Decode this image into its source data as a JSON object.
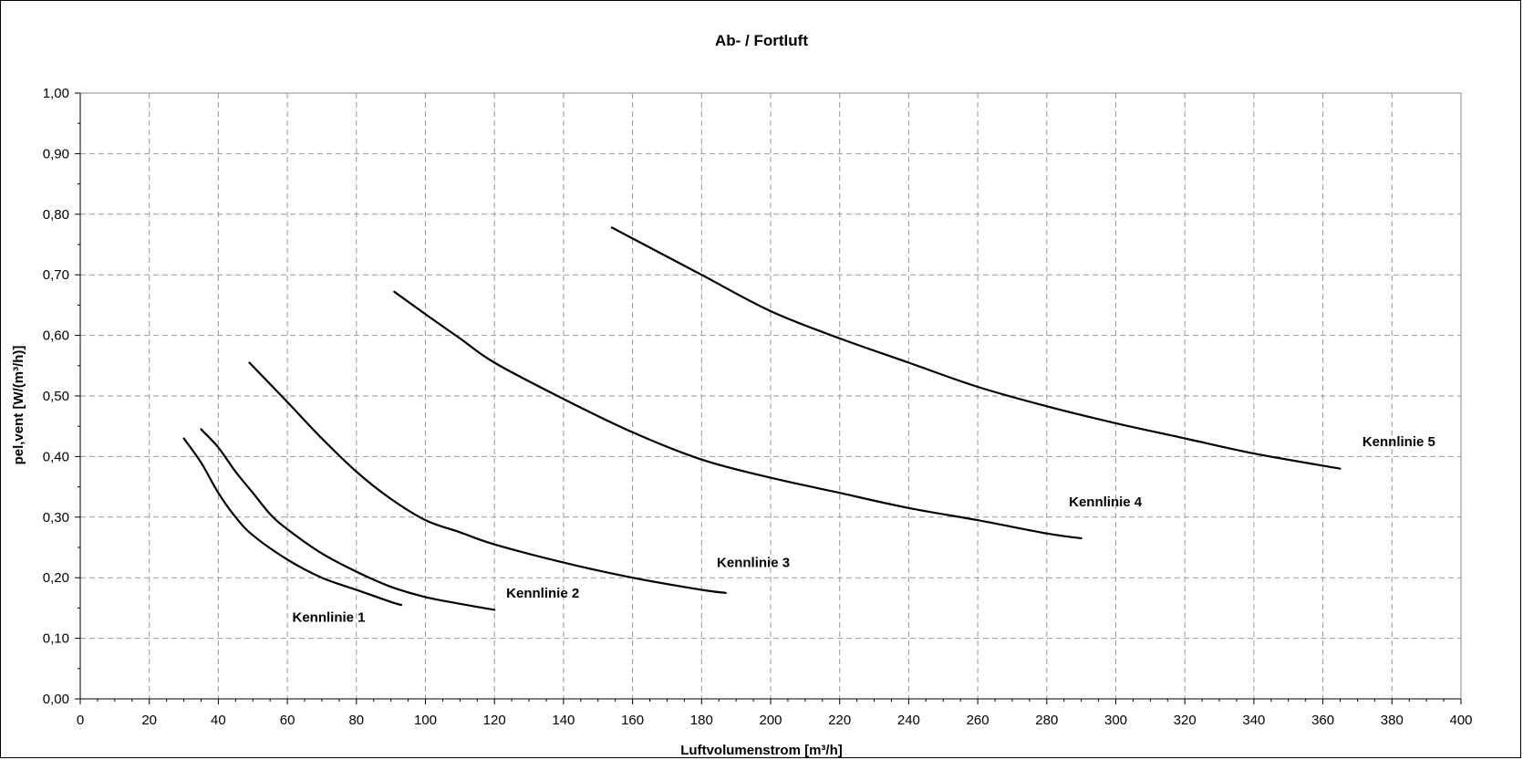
{
  "chart_data": {
    "type": "line",
    "title": "Ab- / Fortluft",
    "xlabel": "Luftvolumenstrom [m³/h]",
    "ylabel": "pel,vent [W/(m³/h)]",
    "xlim": [
      0,
      400
    ],
    "ylim": [
      0,
      1.0
    ],
    "x_ticks": [
      "0",
      "20",
      "40",
      "60",
      "80",
      "100",
      "120",
      "140",
      "160",
      "180",
      "200",
      "220",
      "240",
      "260",
      "280",
      "300",
      "320",
      "340",
      "360",
      "380",
      "400"
    ],
    "y_ticks": [
      "0,00",
      "0,10",
      "0,20",
      "0,30",
      "0,40",
      "0,50",
      "0,60",
      "0,70",
      "0,80",
      "0,90",
      "1,00"
    ],
    "grid": true,
    "legend": "none",
    "series": [
      {
        "name": "Kennlinie 1",
        "x": [
          30,
          35,
          40,
          45,
          50,
          60,
          70,
          80,
          90,
          93
        ],
        "y": [
          0.43,
          0.39,
          0.34,
          0.3,
          0.27,
          0.23,
          0.2,
          0.18,
          0.16,
          0.155
        ]
      },
      {
        "name": "Kennlinie 2",
        "x": [
          35,
          40,
          45,
          50,
          55,
          60,
          70,
          80,
          90,
          100,
          110,
          120
        ],
        "y": [
          0.445,
          0.415,
          0.375,
          0.34,
          0.305,
          0.28,
          0.24,
          0.21,
          0.185,
          0.168,
          0.157,
          0.147
        ]
      },
      {
        "name": "Kennlinie 3",
        "x": [
          49,
          60,
          70,
          80,
          90,
          100,
          110,
          120,
          140,
          160,
          180,
          187
        ],
        "y": [
          0.555,
          0.49,
          0.43,
          0.375,
          0.33,
          0.295,
          0.275,
          0.255,
          0.225,
          0.2,
          0.18,
          0.175
        ]
      },
      {
        "name": "Kennlinie 4",
        "x": [
          91,
          100,
          110,
          120,
          140,
          160,
          180,
          200,
          220,
          240,
          260,
          280,
          290
        ],
        "y": [
          0.672,
          0.635,
          0.595,
          0.555,
          0.495,
          0.44,
          0.395,
          0.365,
          0.34,
          0.315,
          0.295,
          0.273,
          0.265
        ]
      },
      {
        "name": "Kennlinie 5",
        "x": [
          154,
          160,
          180,
          200,
          220,
          240,
          260,
          280,
          300,
          320,
          340,
          365
        ],
        "y": [
          0.778,
          0.76,
          0.7,
          0.64,
          0.595,
          0.555,
          0.515,
          0.483,
          0.455,
          0.43,
          0.405,
          0.38
        ]
      }
    ],
    "annotations": [
      {
        "text": "Kennlinie 1",
        "x": 72,
        "y": 0.135
      },
      {
        "text": "Kennlinie 2",
        "x": 134,
        "y": 0.175
      },
      {
        "text": "Kennlinie 3",
        "x": 195,
        "y": 0.225
      },
      {
        "text": "Kennlinie 4",
        "x": 297,
        "y": 0.325
      },
      {
        "text": "Kennlinie 5",
        "x": 382,
        "y": 0.425
      }
    ]
  }
}
